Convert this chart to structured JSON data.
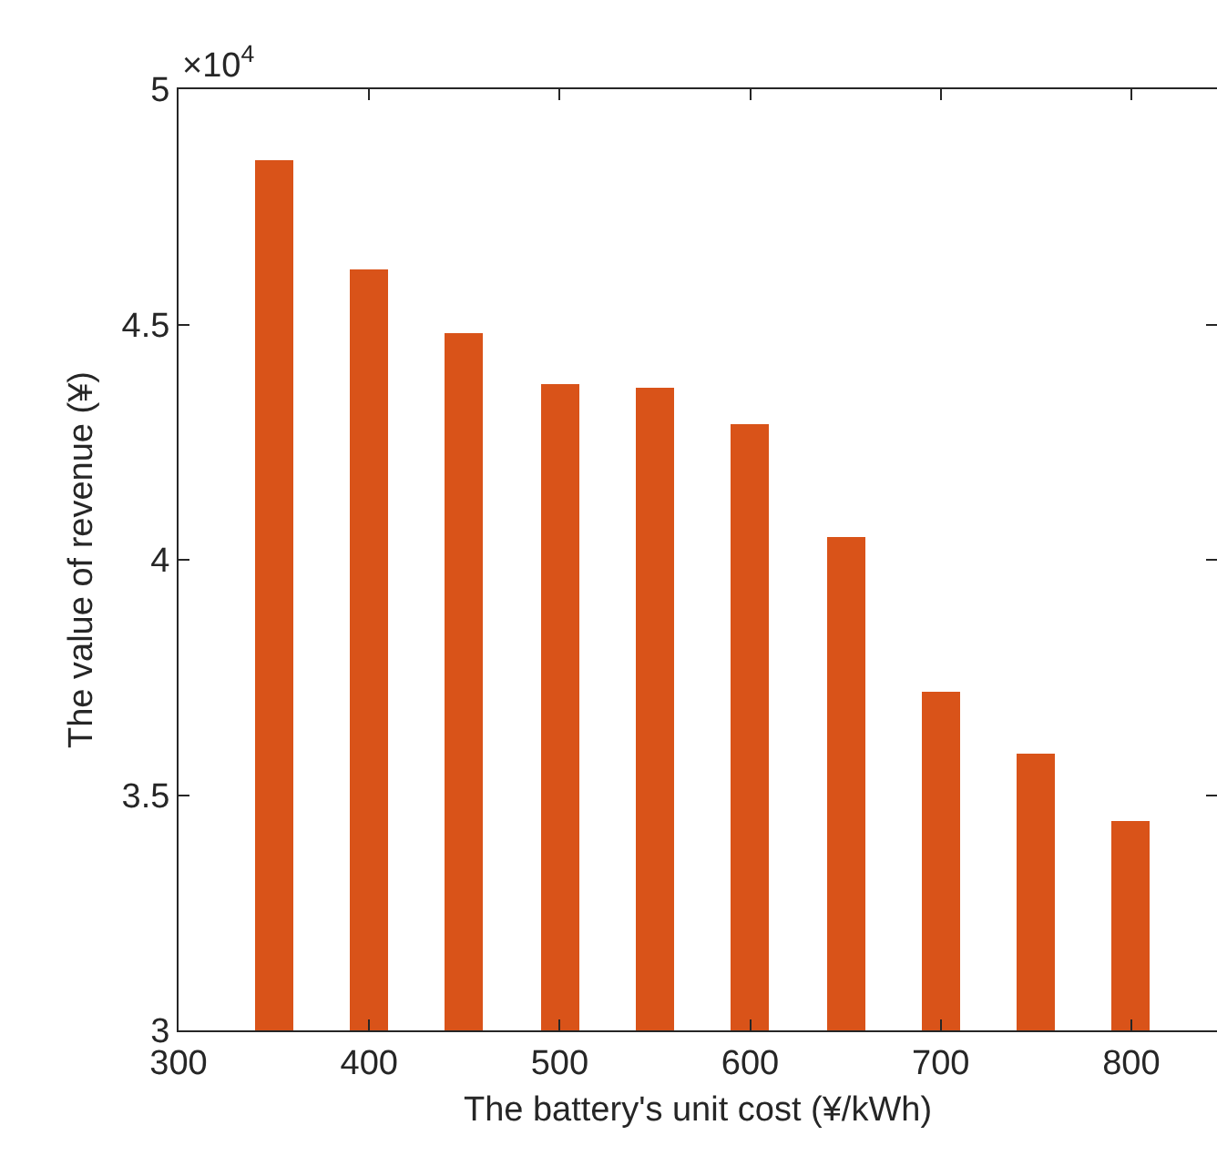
{
  "chart_data": {
    "type": "bar",
    "xlabel": "The battery's unit cost (¥/kWh)",
    "ylabel": "The value of revenue (¥)",
    "x": [
      350,
      400,
      450,
      500,
      550,
      600,
      650,
      700,
      750,
      800
    ],
    "values": [
      4.851,
      4.616,
      4.482,
      4.374,
      4.367,
      4.288,
      4.047,
      3.721,
      3.588,
      3.444
    ],
    "color": "#d95319",
    "xlim": [
      300,
      845
    ],
    "xticks": [
      300,
      400,
      500,
      600,
      700,
      800
    ],
    "ylim": [
      3,
      5
    ],
    "yticks": [
      3,
      3.5,
      4,
      4.5,
      5
    ],
    "annotations": [
      "×10$^{4}$"
    ],
    "grid": false,
    "legend": false
  }
}
